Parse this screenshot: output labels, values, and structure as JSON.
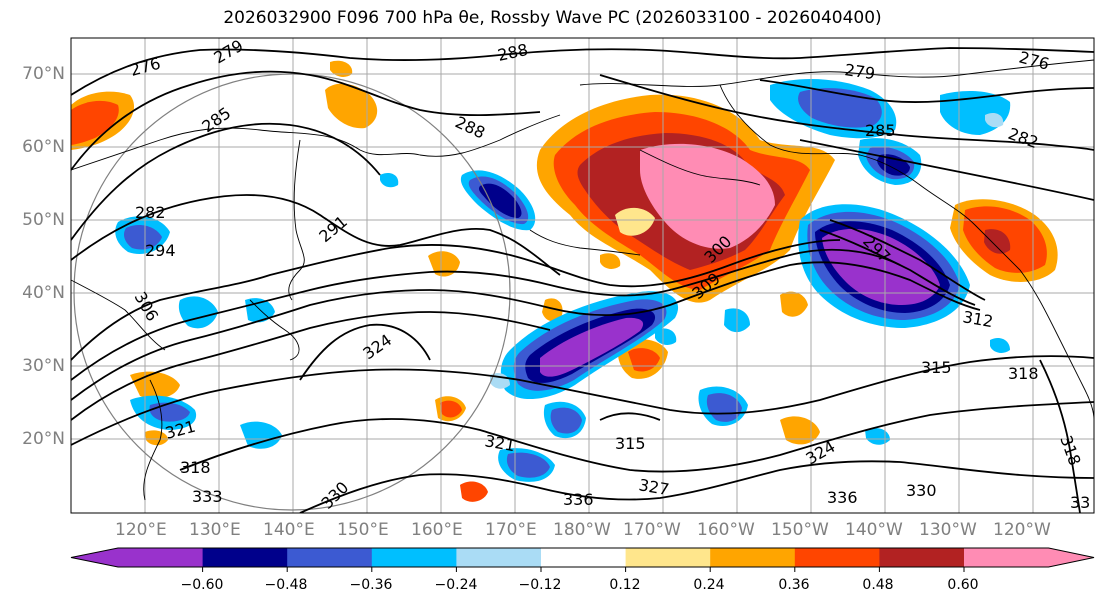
{
  "figure": {
    "title": "2026032900 F096 700 hPa θe, Rossby Wave PC (2026033100 - 2026040400)"
  },
  "map": {
    "type": "geographic contour/filled-contour map",
    "projection": "equidistant cylindrical (Pacific-centred)",
    "lat_labels": [
      "70°N",
      "60°N",
      "50°N",
      "40°N",
      "30°N",
      "20°N"
    ],
    "lon_labels": [
      "120°E",
      "130°E",
      "140°E",
      "150°E",
      "160°E",
      "170°E",
      "180°W",
      "170°W",
      "160°W",
      "150°W",
      "140°W",
      "130°W",
      "120°W"
    ],
    "contour_labels": [
      "276",
      "279",
      "285",
      "288",
      "288",
      "279",
      "285",
      "282",
      "276",
      "282",
      "294",
      "291",
      "300",
      "309",
      "297",
      "312",
      "306",
      "324",
      "321",
      "315",
      "315",
      "318",
      "336",
      "327",
      "324",
      "330",
      "336",
      "318",
      "330",
      "321",
      "318",
      "333",
      "33"
    ],
    "grid": true,
    "coastlines": true
  },
  "colorbar": {
    "tick_labels": [
      "−0.60",
      "−0.48",
      "−0.36",
      "−0.24",
      "−0.12",
      "0.12",
      "0.24",
      "0.36",
      "0.48",
      "0.60"
    ],
    "colors": [
      "#9932cc",
      "#00008b",
      "#3c5ad2",
      "#00bfff",
      "#aadcf5",
      "#ffffff",
      "#ffe68c",
      "#ffa500",
      "#ff4500",
      "#b22222",
      "#ff8cb4"
    ]
  },
  "colors": {
    "purple": "#9932cc",
    "navy": "#00008b",
    "royal": "#3c5ad2",
    "sky": "#00bfff",
    "pale_blue": "#aadcf5",
    "pale_yellow": "#ffe68c",
    "orange": "#ffa500",
    "red_orange": "#ff4500",
    "firebrick": "#b22222",
    "pink": "#ff8cb4"
  }
}
